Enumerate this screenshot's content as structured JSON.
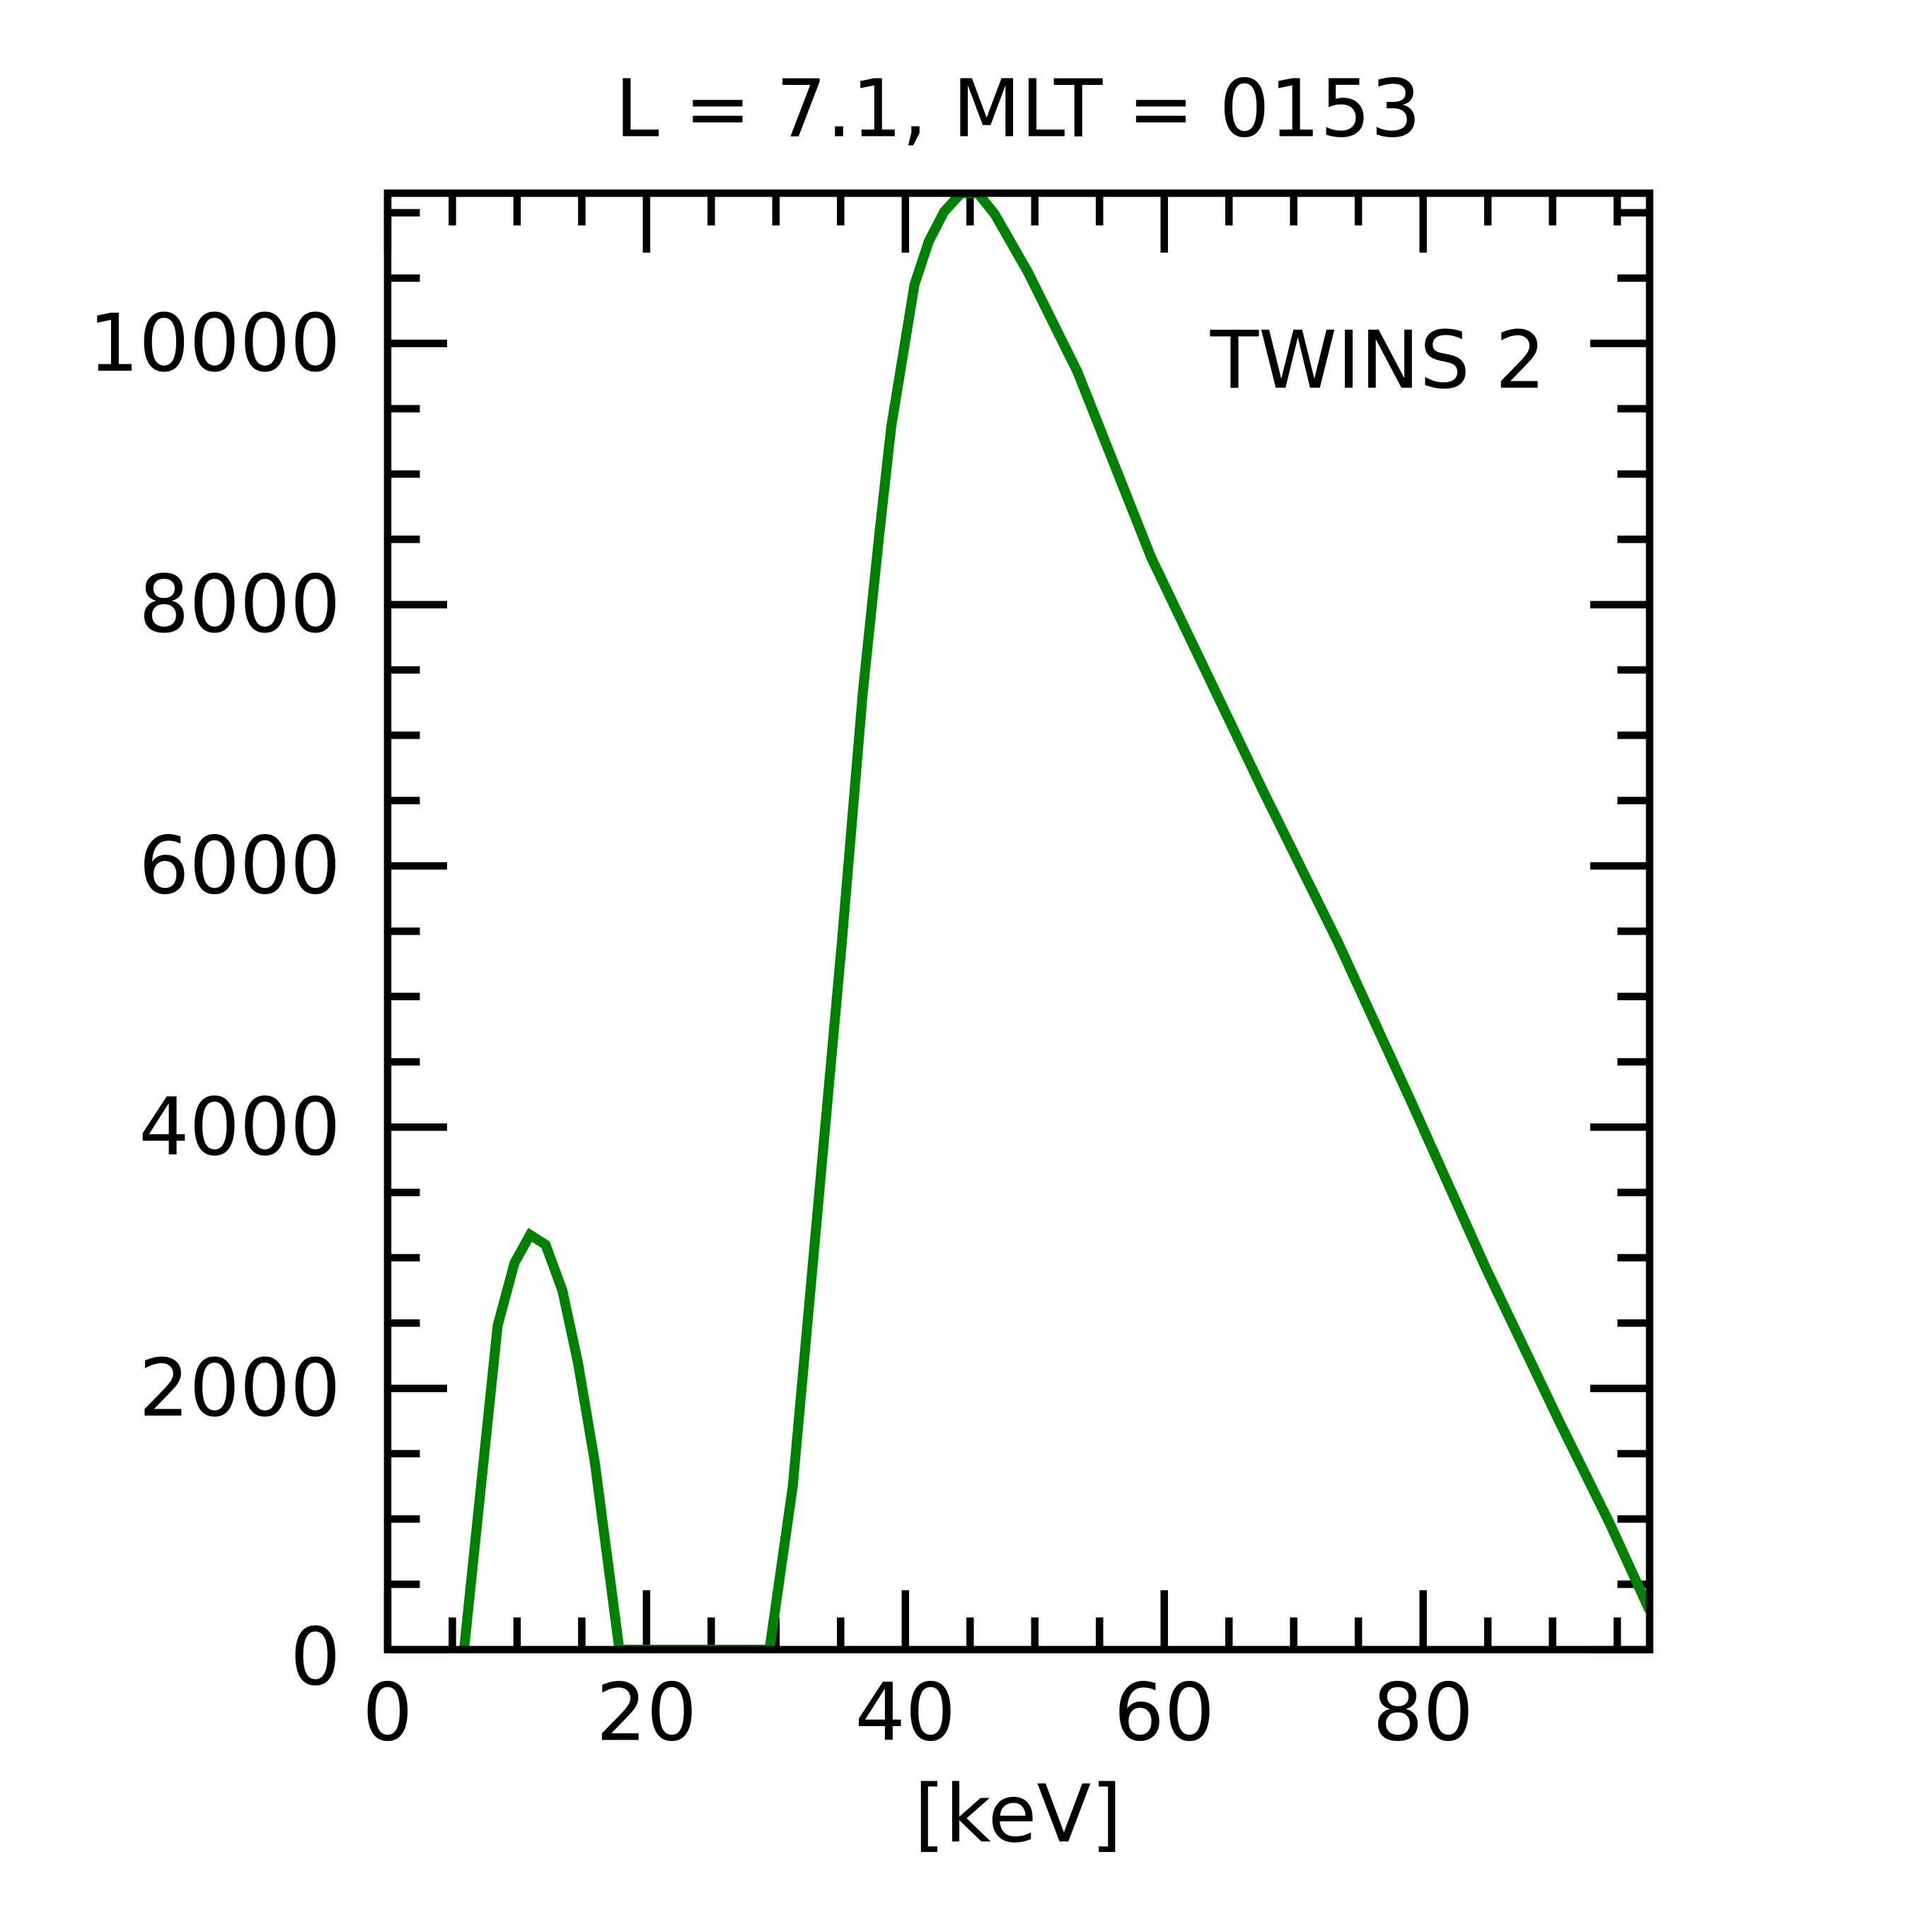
{
  "chart_data": {
    "type": "line",
    "title": "L =  7.1, MLT = 0153",
    "xlabel": "[keV]",
    "ylabel": "",
    "xlim": [
      0,
      97.5
    ],
    "ylim": [
      0,
      11150
    ],
    "xticks": [
      0,
      20,
      40,
      60,
      80
    ],
    "xtick_labels": [
      "0",
      "20",
      "40",
      "60",
      "80"
    ],
    "x_minor_step": 5,
    "yticks": [
      0,
      2000,
      4000,
      6000,
      8000,
      10000
    ],
    "ytick_labels": [
      "0",
      "2000",
      "4000",
      "6000",
      "8000",
      "10000"
    ],
    "y_minor_step": 500,
    "grid": false,
    "legend": {
      "position": "top-right"
    },
    "series": [
      {
        "name": "TWINS 2",
        "color": "#008000",
        "x": [
          5.9,
          8.5,
          9.8,
          11.0,
          12.2,
          13.5,
          14.7,
          16.0,
          17.9,
          18.0,
          29.5,
          31.3,
          33.2,
          35.1,
          36.7,
          38.0,
          38.9,
          40.7,
          41.8,
          43.0,
          44.3,
          45.6,
          46.9,
          49.5,
          53.3,
          59.0,
          67.7,
          73.4,
          79.1,
          84.9,
          90.6,
          94.4,
          97.5
        ],
        "y": [
          0,
          2480,
          2960,
          3175,
          3100,
          2750,
          2200,
          1440,
          0,
          0,
          0,
          1250,
          3340,
          5420,
          7320,
          8550,
          9360,
          10450,
          10780,
          11010,
          11150,
          11150,
          10990,
          10540,
          9780,
          8360,
          6560,
          5420,
          4190,
          2910,
          1730,
          970,
          300
        ]
      }
    ]
  }
}
